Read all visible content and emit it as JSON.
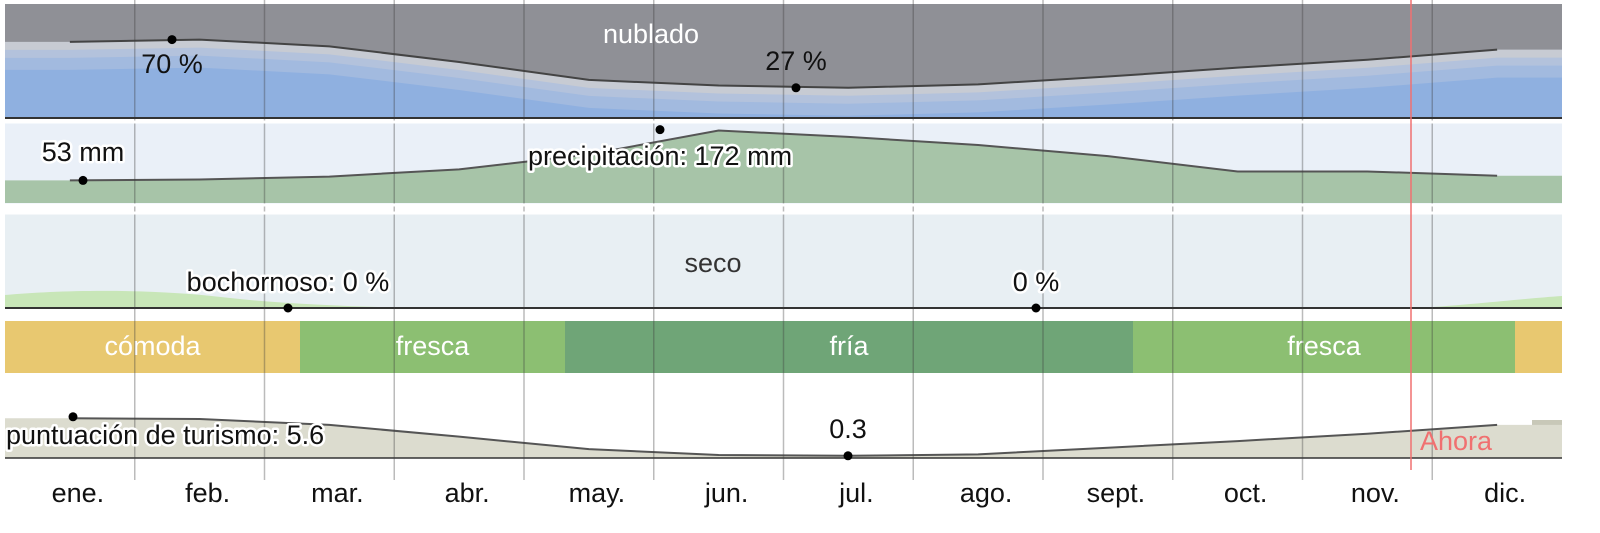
{
  "clouds": {
    "label": "nublado",
    "ylim": [
      0,
      100
    ],
    "values": [
      68,
      70,
      64,
      50,
      34,
      29,
      27,
      30,
      37,
      45,
      52,
      61
    ],
    "max": {
      "value": 70,
      "label": "70 %"
    },
    "min": {
      "value": 27,
      "label": "27 %"
    }
  },
  "precipitation": {
    "ylim": [
      0,
      190
    ],
    "values": [
      53,
      55,
      62,
      79,
      114,
      170,
      155,
      136,
      110,
      74,
      74,
      64
    ],
    "min": {
      "value": 53,
      "label": "53 mm"
    },
    "max": {
      "value": 172,
      "label": "precipitación: 172 mm"
    }
  },
  "humidity": {
    "label": "seco",
    "max": {
      "value": 0,
      "label": "bochornoso: 0 %"
    },
    "min": {
      "value": 0,
      "label": "0 %"
    }
  },
  "comfort": [
    {
      "label": "cómoda",
      "color": "#e8c870"
    },
    {
      "label": "fresca",
      "color": "#8cbf72"
    },
    {
      "label": "fría",
      "color": "#6fa577"
    },
    {
      "label": "fresca",
      "color": "#8cbf72"
    },
    {
      "label": null,
      "color": "#e8c870"
    }
  ],
  "tourism": {
    "ylim": [
      0,
      7.2
    ],
    "values": [
      5.4,
      5.3,
      4.5,
      2.9,
      1.2,
      0.4,
      0.3,
      0.5,
      1.4,
      2.3,
      3.3,
      4.5
    ],
    "max": {
      "value": 5.6,
      "label": "puntuación de turismo: 5.6"
    },
    "min": {
      "value": 0.3,
      "label": "0.3"
    }
  },
  "now": "Ahora",
  "months": [
    "ene.",
    "feb.",
    "mar.",
    "abr.",
    "may.",
    "jun.",
    "jul.",
    "ago.",
    "sept.",
    "oct.",
    "nov.",
    "dic."
  ]
}
